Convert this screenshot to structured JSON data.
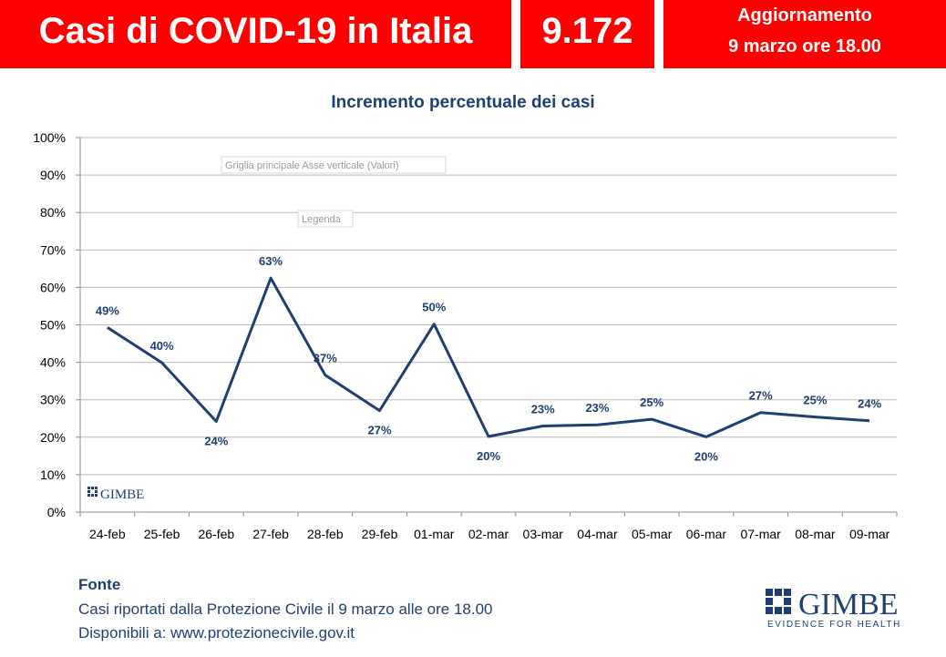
{
  "header": {
    "title": "Casi di COVID-19 in Italia",
    "total_cases": "9.172",
    "update_line1": "Aggiornamento",
    "update_line2": "9 marzo ore 18.00",
    "accent_color": "#ff0000"
  },
  "chart_data": {
    "type": "line",
    "title": "Incremento percentuale dei casi",
    "xlabel": "",
    "ylabel": "",
    "categories": [
      "24-feb",
      "25-feb",
      "26-feb",
      "27-feb",
      "28-feb",
      "29-feb",
      "01-mar",
      "02-mar",
      "03-mar",
      "04-mar",
      "05-mar",
      "06-mar",
      "07-mar",
      "08-mar",
      "09-mar"
    ],
    "series": [
      {
        "values": [
          49.3,
          39.9,
          24.2,
          62.5,
          36.6,
          27.1,
          50.2,
          20.2,
          23.0,
          23.3,
          24.8,
          20.1,
          26.6,
          25.4,
          24.4
        ],
        "labels": [
          "49%",
          "40%",
          "24%",
          "63%",
          "37%",
          "27%",
          "50%",
          "20%",
          "23%",
          "23%",
          "25%",
          "20%",
          "27%",
          "25%",
          "24%"
        ]
      }
    ],
    "ylim": [
      0,
      100
    ],
    "yticks": [
      "0%",
      "10%",
      "20%",
      "30%",
      "40%",
      "50%",
      "60%",
      "70%",
      "80%",
      "90%",
      "100%"
    ],
    "grid": true,
    "line_color": "#1f3f73",
    "tooltips": [
      "Griglia principale Asse verticale (Valori)",
      "Legenda"
    ],
    "watermark": "GIMBE"
  },
  "footer": {
    "source_label": "Fonte",
    "source_line1": "Casi riportati dalla Protezione Civile il 9 marzo alle ore 18.00",
    "source_line2": "Disponibili a: www.protezionecivile.gov.it"
  },
  "logo": {
    "name": "GIMBE",
    "tagline": "EVIDENCE FOR HEALTH"
  }
}
